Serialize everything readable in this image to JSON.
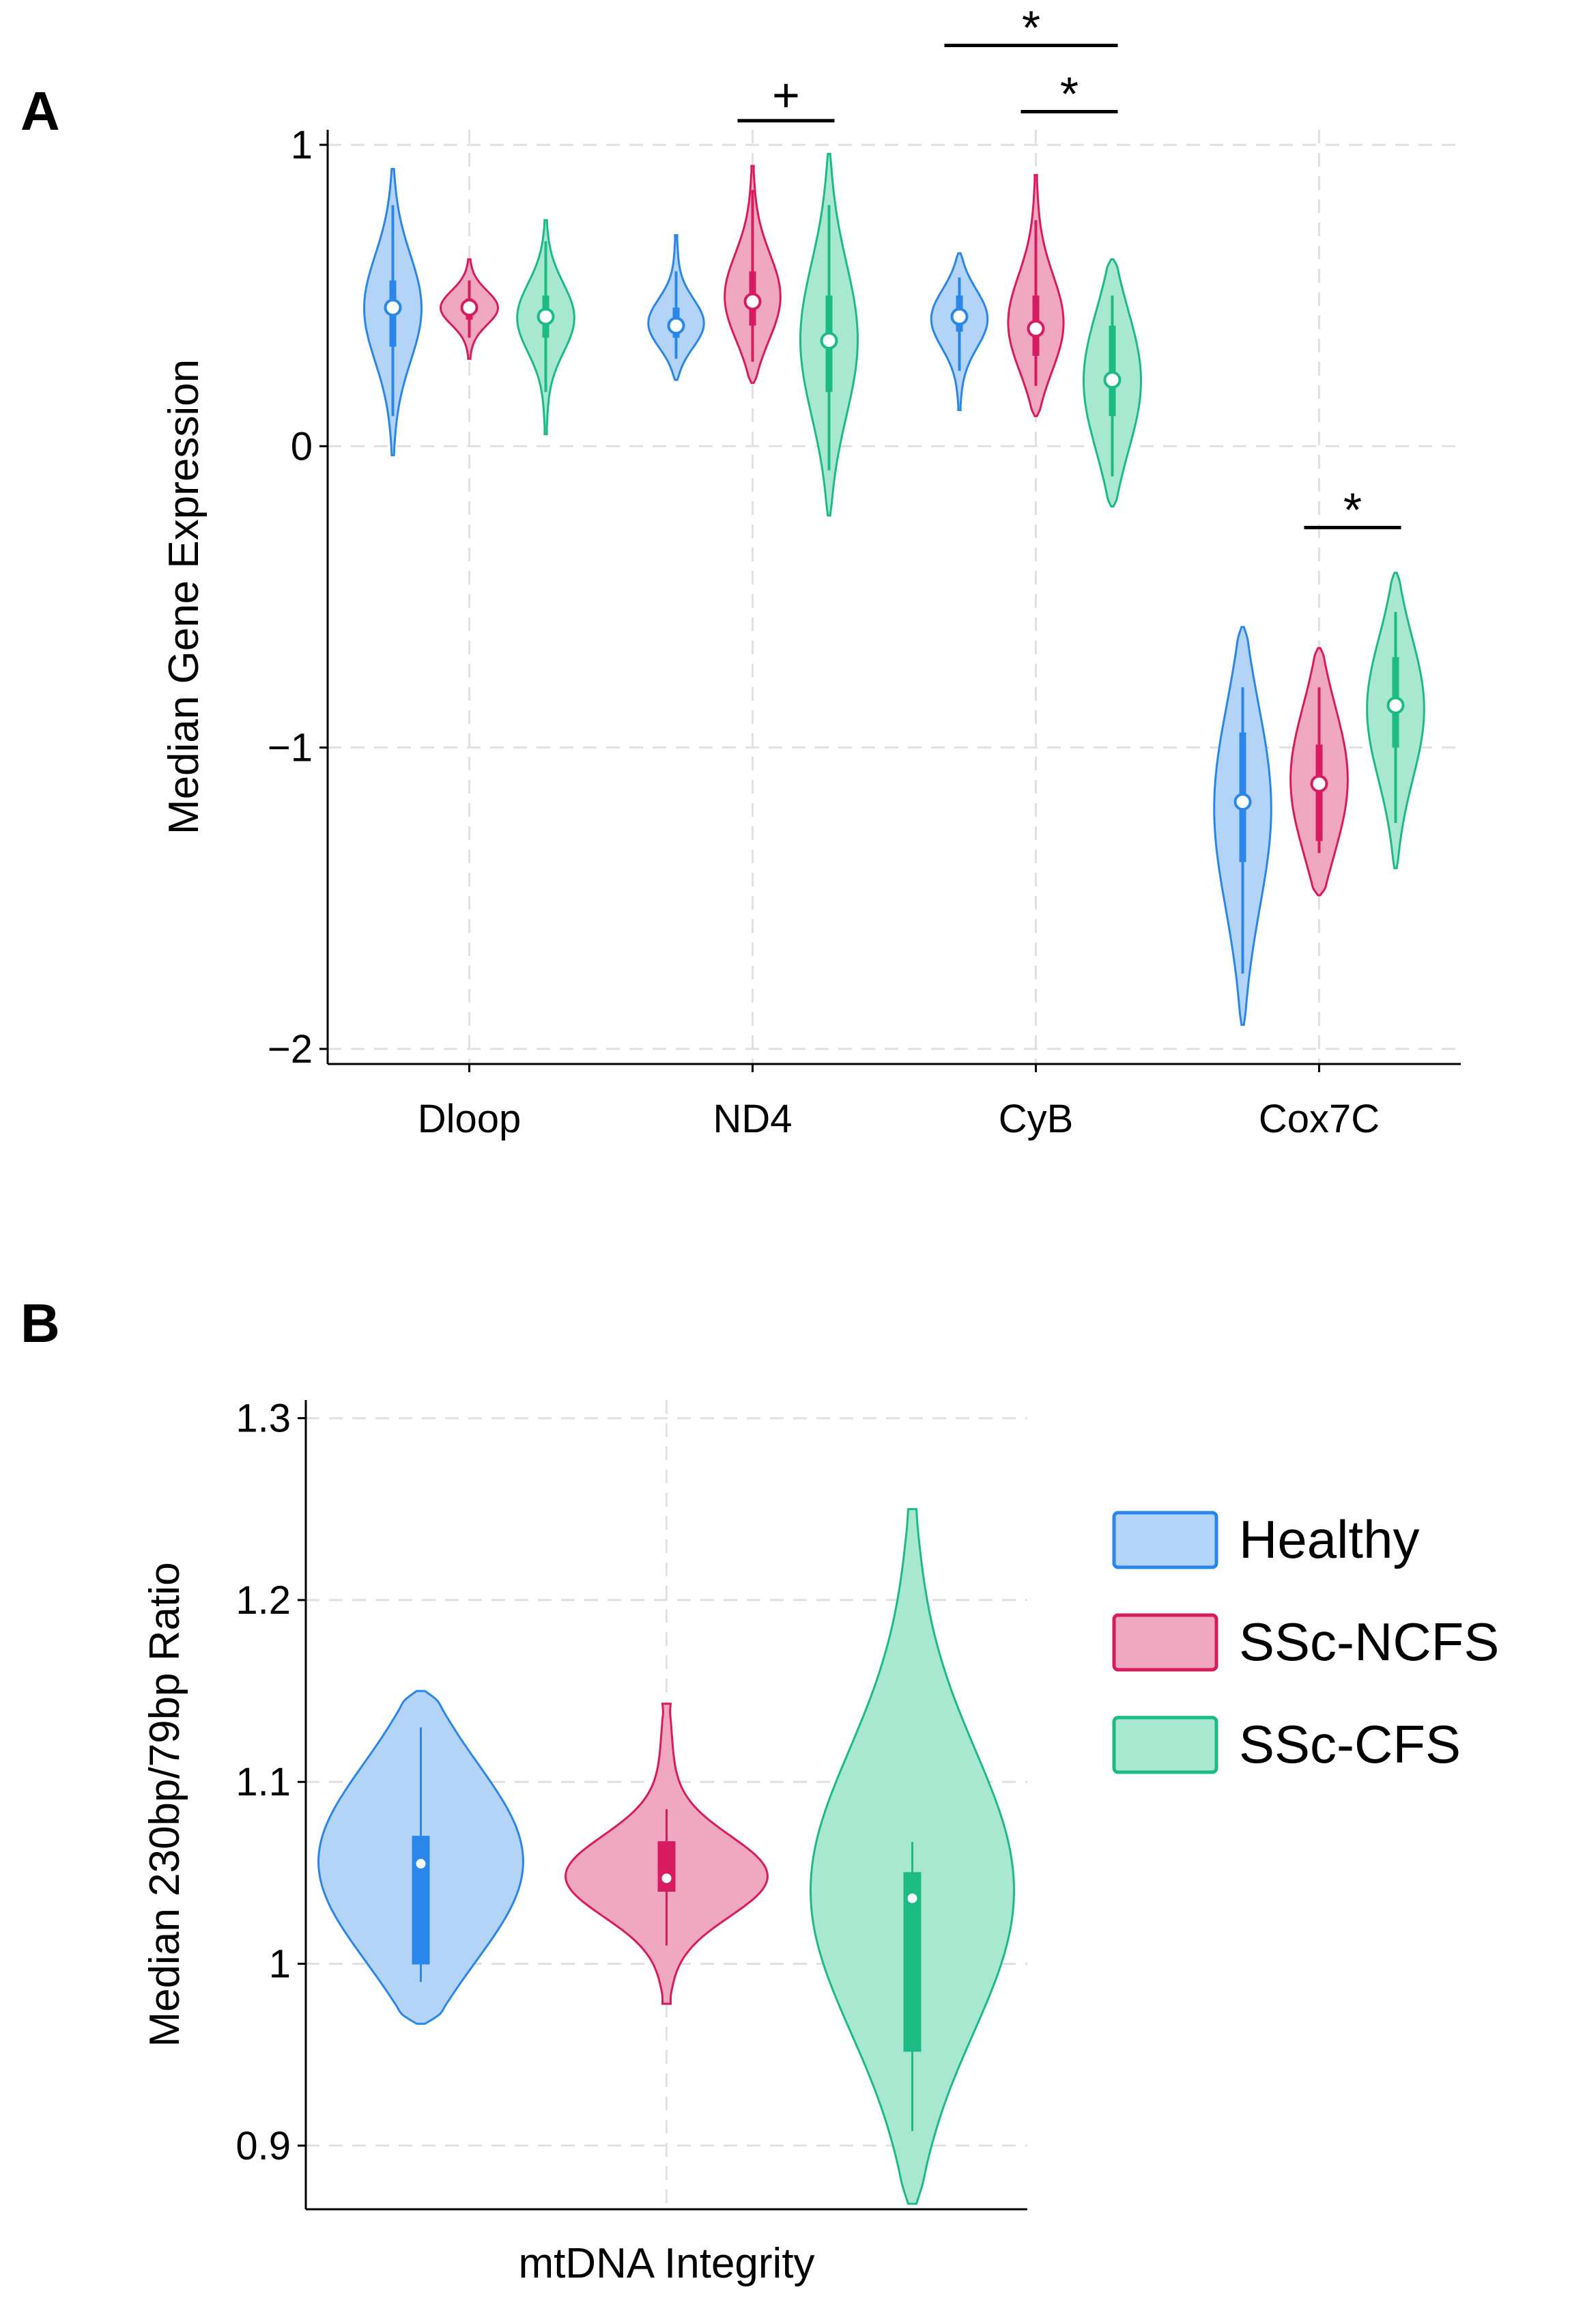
{
  "figure": {
    "panelA_label": "A",
    "panelB_label": "B"
  },
  "chart_data": [
    {
      "type": "violin",
      "panel": "A",
      "ylabel": "Median Gene Expression",
      "xlabel": "",
      "ylim": [
        -2.05,
        1.05
      ],
      "yticks": [
        {
          "value": 1,
          "label": "1"
        },
        {
          "value": 0,
          "label": "0"
        },
        {
          "value": -1,
          "label": "−1"
        },
        {
          "value": -2,
          "label": "−2"
        }
      ],
      "categories": [
        "Dloop",
        "ND4",
        "CyB",
        "Cox7C"
      ],
      "groups": [
        "Healthy",
        "SSc-NCFS",
        "SSc-CFS"
      ],
      "violins": [
        {
          "category": "Dloop",
          "group": "Healthy",
          "median": 0.46,
          "q1": 0.33,
          "q3": 0.55,
          "wlo": 0.1,
          "whi": 0.8,
          "min": -0.03,
          "max": 0.92
        },
        {
          "category": "Dloop",
          "group": "SSc-NCFS",
          "median": 0.46,
          "q1": 0.42,
          "q3": 0.49,
          "wlo": 0.36,
          "whi": 0.55,
          "min": 0.29,
          "max": 0.62
        },
        {
          "category": "Dloop",
          "group": "SSc-CFS",
          "median": 0.43,
          "q1": 0.36,
          "q3": 0.5,
          "wlo": 0.18,
          "whi": 0.68,
          "min": 0.04,
          "max": 0.75
        },
        {
          "category": "ND4",
          "group": "Healthy",
          "median": 0.4,
          "q1": 0.36,
          "q3": 0.46,
          "wlo": 0.29,
          "whi": 0.58,
          "min": 0.22,
          "max": 0.7
        },
        {
          "category": "ND4",
          "group": "SSc-NCFS",
          "median": 0.48,
          "q1": 0.4,
          "q3": 0.58,
          "wlo": 0.28,
          "whi": 0.85,
          "min": 0.21,
          "max": 0.93
        },
        {
          "category": "ND4",
          "group": "SSc-CFS",
          "median": 0.35,
          "q1": 0.18,
          "q3": 0.5,
          "wlo": -0.08,
          "whi": 0.8,
          "min": -0.23,
          "max": 0.97
        },
        {
          "category": "CyB",
          "group": "Healthy",
          "median": 0.43,
          "q1": 0.38,
          "q3": 0.5,
          "wlo": 0.25,
          "whi": 0.56,
          "min": 0.12,
          "max": 0.64
        },
        {
          "category": "CyB",
          "group": "SSc-NCFS",
          "median": 0.39,
          "q1": 0.3,
          "q3": 0.5,
          "wlo": 0.2,
          "whi": 0.75,
          "min": 0.1,
          "max": 0.9
        },
        {
          "category": "CyB",
          "group": "SSc-CFS",
          "median": 0.22,
          "q1": 0.1,
          "q3": 0.4,
          "wlo": -0.1,
          "whi": 0.5,
          "min": -0.2,
          "max": 0.62
        },
        {
          "category": "Cox7C",
          "group": "Healthy",
          "median": -1.18,
          "q1": -1.38,
          "q3": -0.95,
          "wlo": -1.75,
          "whi": -0.8,
          "min": -1.92,
          "max": -0.6
        },
        {
          "category": "Cox7C",
          "group": "SSc-NCFS",
          "median": -1.12,
          "q1": -1.31,
          "q3": -0.99,
          "wlo": -1.35,
          "whi": -0.8,
          "min": -1.49,
          "max": -0.67
        },
        {
          "category": "Cox7C",
          "group": "SSc-CFS",
          "median": -0.86,
          "q1": -1.0,
          "q3": -0.7,
          "wlo": -1.25,
          "whi": -0.55,
          "min": -1.4,
          "max": -0.42
        }
      ],
      "significance": [
        {
          "symbol": "+",
          "category": "ND4",
          "from_group": "SSc-NCFS",
          "to_group": "SSc-CFS",
          "level": 1.08
        },
        {
          "symbol": "*",
          "category": "CyB",
          "from_group": "Healthy",
          "to_group": "SSc-CFS",
          "level": 1.33
        },
        {
          "symbol": "*",
          "category": "CyB",
          "from_group": "SSc-NCFS",
          "to_group": "SSc-CFS",
          "level": 1.11
        },
        {
          "symbol": "*",
          "category": "Cox7C",
          "from_group": "SSc-NCFS",
          "to_group": "SSc-CFS",
          "level": -0.27
        }
      ]
    },
    {
      "type": "violin",
      "panel": "B",
      "ylabel": "Median 230bp/79bp Ratio",
      "xlabel": "mtDNA Integrity",
      "ylim": [
        0.865,
        1.31
      ],
      "yticks": [
        {
          "value": 1.3,
          "label": "1.3"
        },
        {
          "value": 1.2,
          "label": "1.2"
        },
        {
          "value": 1.1,
          "label": "1.1"
        },
        {
          "value": 1.0,
          "label": "1"
        },
        {
          "value": 0.9,
          "label": "0.9"
        }
      ],
      "groups": [
        "Healthy",
        "SSc-NCFS",
        "SSc-CFS"
      ],
      "violins": [
        {
          "group": "Healthy",
          "median": 1.055,
          "q1": 1.0,
          "q3": 1.07,
          "wlo": 0.99,
          "whi": 1.13,
          "min": 0.967,
          "max": 1.15
        },
        {
          "group": "SSc-NCFS",
          "median": 1.047,
          "q1": 1.04,
          "q3": 1.067,
          "wlo": 1.01,
          "whi": 1.085,
          "min": 0.978,
          "max": 1.143
        },
        {
          "group": "SSc-CFS",
          "median": 1.036,
          "q1": 0.952,
          "q3": 1.05,
          "wlo": 0.908,
          "whi": 1.067,
          "min": 0.868,
          "max": 1.25
        }
      ]
    }
  ],
  "legend": {
    "position": "right",
    "entries": [
      {
        "label": "Healthy",
        "fill": "#b3d4f6",
        "stroke": "#2a86e8"
      },
      {
        "label": "SSc-NCFS",
        "fill": "#f0a8c0",
        "stroke": "#d81b60"
      },
      {
        "label": "SSc-CFS",
        "fill": "#a8e8d0",
        "stroke": "#1dbb84"
      }
    ]
  },
  "colors": {
    "Healthy": {
      "fill": "#b3d4f6",
      "stroke": "#2a86e8",
      "box": "#2a86e8"
    },
    "SSc-NCFS": {
      "fill": "#f0a8c0",
      "stroke": "#d81b60",
      "box": "#d81b60"
    },
    "SSc-CFS": {
      "fill": "#a8e8d0",
      "stroke": "#1dbb84",
      "box": "#1dbb84"
    }
  }
}
